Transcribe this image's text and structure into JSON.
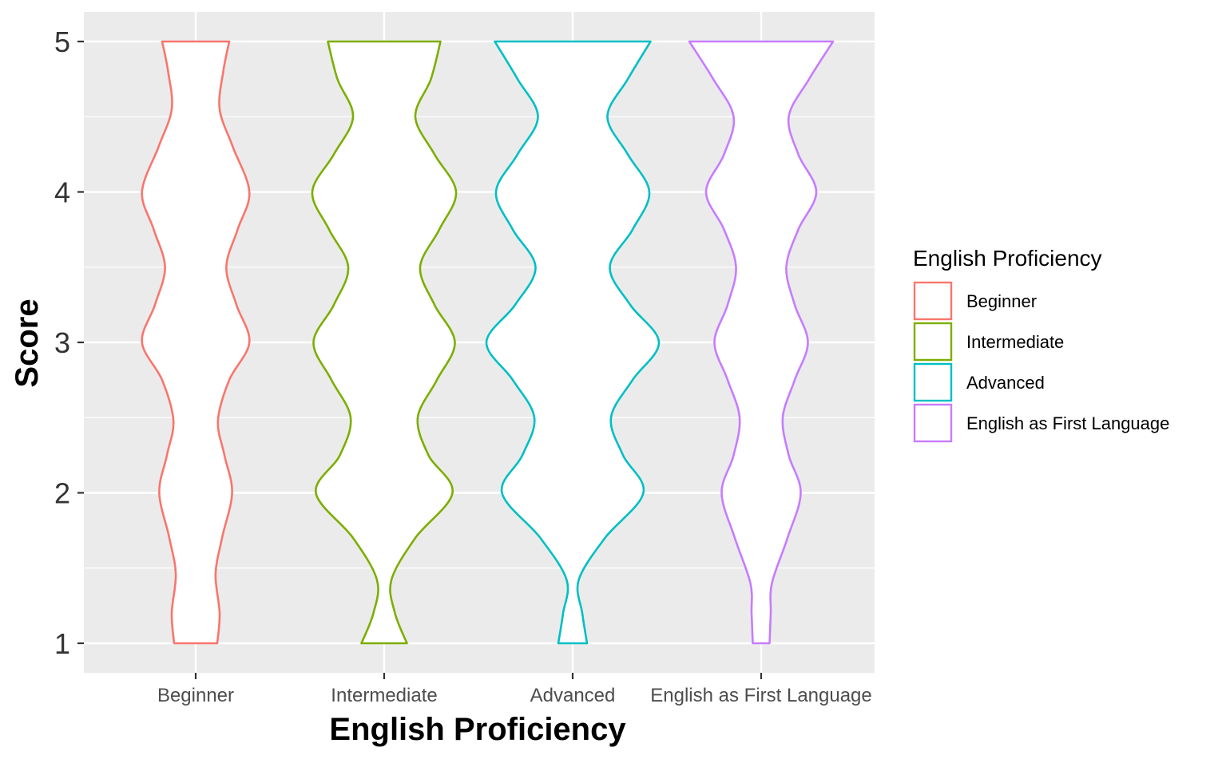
{
  "chart_data": {
    "type": "violin",
    "title": "",
    "xlabel": "English Proficiency",
    "ylabel": "Score",
    "ylim": [
      0.8,
      5.2
    ],
    "y_ticks": [
      1,
      2,
      3,
      4,
      5
    ],
    "grid": true,
    "legend": {
      "title": "English Proficiency",
      "position": "right"
    },
    "categories": [
      "Beginner",
      "Intermediate",
      "Advanced",
      "English as First Language"
    ],
    "series": [
      {
        "name": "Beginner",
        "color": "#F8766D",
        "y_min": 1,
        "y_max": 5,
        "density": [
          {
            "y": 1.0,
            "w": 0.9
          },
          {
            "y": 1.2,
            "w": 1.0
          },
          {
            "y": 1.46,
            "w": 0.83
          },
          {
            "y": 1.7,
            "w": 1.1
          },
          {
            "y": 2.0,
            "w": 1.52
          },
          {
            "y": 2.25,
            "w": 1.2
          },
          {
            "y": 2.48,
            "w": 0.93
          },
          {
            "y": 2.75,
            "w": 1.4
          },
          {
            "y": 3.0,
            "w": 2.24
          },
          {
            "y": 3.25,
            "w": 1.7
          },
          {
            "y": 3.5,
            "w": 1.28
          },
          {
            "y": 3.75,
            "w": 1.75
          },
          {
            "y": 4.0,
            "w": 2.24
          },
          {
            "y": 4.3,
            "w": 1.55
          },
          {
            "y": 4.55,
            "w": 1.0
          },
          {
            "y": 4.8,
            "w": 1.15
          },
          {
            "y": 5.0,
            "w": 1.4
          }
        ]
      },
      {
        "name": "Intermediate",
        "color": "#7CAE00",
        "y_min": 1,
        "y_max": 5,
        "density": [
          {
            "y": 1.0,
            "w": 0.95
          },
          {
            "y": 1.2,
            "w": 0.45
          },
          {
            "y": 1.42,
            "w": 0.3
          },
          {
            "y": 1.7,
            "w": 1.3
          },
          {
            "y": 2.0,
            "w": 2.85
          },
          {
            "y": 2.25,
            "w": 1.85
          },
          {
            "y": 2.5,
            "w": 1.4
          },
          {
            "y": 2.75,
            "w": 2.2
          },
          {
            "y": 3.0,
            "w": 2.95
          },
          {
            "y": 3.25,
            "w": 2.1
          },
          {
            "y": 3.5,
            "w": 1.5
          },
          {
            "y": 3.75,
            "w": 2.3
          },
          {
            "y": 4.0,
            "w": 3.0
          },
          {
            "y": 4.25,
            "w": 2.1
          },
          {
            "y": 4.5,
            "w": 1.3
          },
          {
            "y": 4.75,
            "w": 1.95
          },
          {
            "y": 5.0,
            "w": 2.35
          }
        ]
      },
      {
        "name": "Advanced",
        "color": "#00BFC4",
        "y_min": 1,
        "y_max": 5,
        "density": [
          {
            "y": 1.0,
            "w": 0.6
          },
          {
            "y": 1.2,
            "w": 0.4
          },
          {
            "y": 1.42,
            "w": 0.25
          },
          {
            "y": 1.7,
            "w": 1.35
          },
          {
            "y": 2.0,
            "w": 2.95
          },
          {
            "y": 2.25,
            "w": 2.1
          },
          {
            "y": 2.5,
            "w": 1.6
          },
          {
            "y": 2.75,
            "w": 2.5
          },
          {
            "y": 3.0,
            "w": 3.6
          },
          {
            "y": 3.25,
            "w": 2.4
          },
          {
            "y": 3.5,
            "w": 1.55
          },
          {
            "y": 3.75,
            "w": 2.5
          },
          {
            "y": 4.0,
            "w": 3.2
          },
          {
            "y": 4.25,
            "w": 2.3
          },
          {
            "y": 4.5,
            "w": 1.45
          },
          {
            "y": 4.75,
            "w": 2.3
          },
          {
            "y": 5.0,
            "w": 3.25
          }
        ]
      },
      {
        "name": "English as First Language",
        "color": "#C77CFF",
        "y_min": 1,
        "y_max": 5,
        "density": [
          {
            "y": 1.0,
            "w": 0.35
          },
          {
            "y": 1.2,
            "w": 0.4
          },
          {
            "y": 1.4,
            "w": 0.45
          },
          {
            "y": 1.7,
            "w": 1.1
          },
          {
            "y": 2.0,
            "w": 1.65
          },
          {
            "y": 2.25,
            "w": 1.15
          },
          {
            "y": 2.5,
            "w": 0.9
          },
          {
            "y": 2.75,
            "w": 1.4
          },
          {
            "y": 3.0,
            "w": 1.95
          },
          {
            "y": 3.25,
            "w": 1.4
          },
          {
            "y": 3.5,
            "w": 1.05
          },
          {
            "y": 3.75,
            "w": 1.55
          },
          {
            "y": 4.0,
            "w": 2.3
          },
          {
            "y": 4.25,
            "w": 1.55
          },
          {
            "y": 4.5,
            "w": 1.15
          },
          {
            "y": 4.75,
            "w": 2.0
          },
          {
            "y": 5.0,
            "w": 3.0
          }
        ]
      }
    ]
  }
}
